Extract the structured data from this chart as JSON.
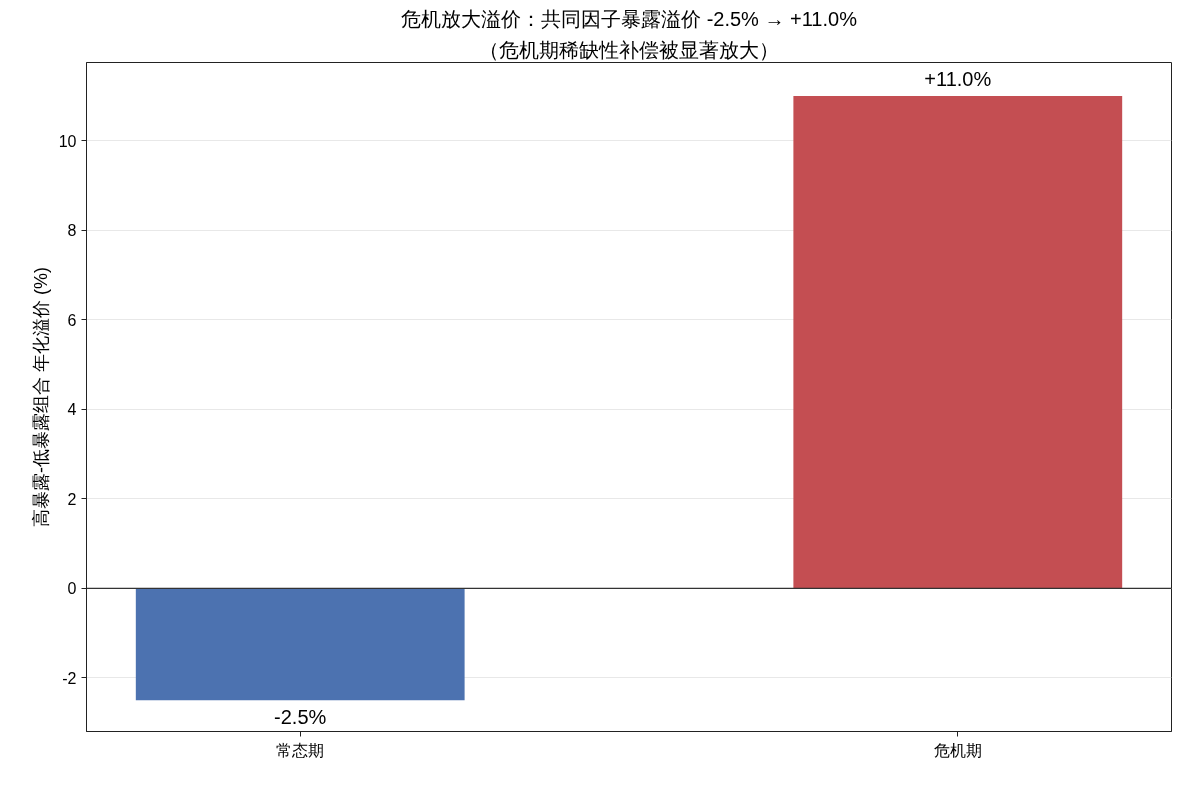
{
  "chart_data": {
    "type": "bar",
    "title": "危机放大溢价：共同因子暴露溢价 -2.5% → +11.0%",
    "subtitle": "（危机期稀缺性补偿被显著放大）",
    "ylabel": "高暴露-低暴露组合 年化溢价 (%)",
    "categories": [
      "常态期",
      "危机期"
    ],
    "values": [
      -2.5,
      11.0
    ],
    "colors": [
      "#4c72b0",
      "#c44e52"
    ],
    "value_labels": [
      "-2.5%",
      "+11.0%"
    ],
    "ylim": [
      -3.2,
      11.75
    ],
    "yticks": [
      -2,
      0,
      2,
      4,
      6,
      8,
      10
    ],
    "grid": "y",
    "ref_lines": [
      {
        "axis": "y",
        "value": 0,
        "color": "#333333"
      }
    ]
  }
}
